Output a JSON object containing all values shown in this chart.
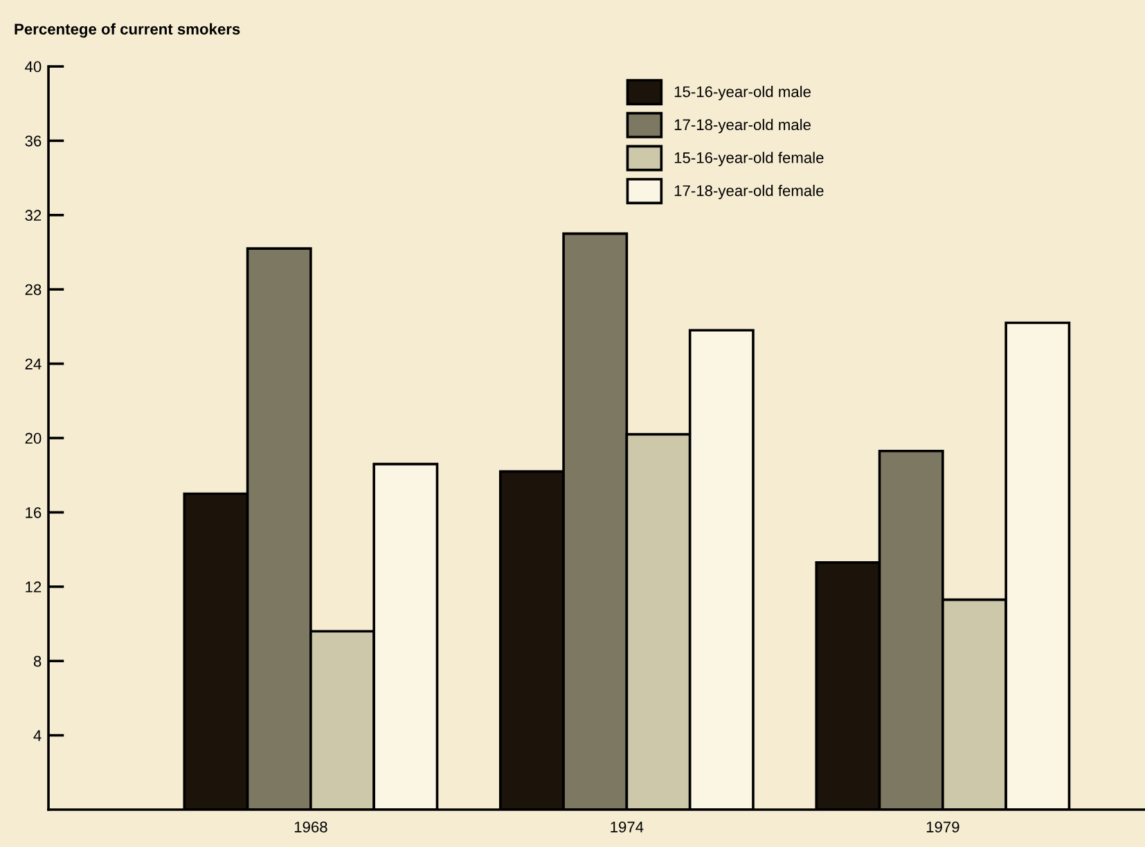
{
  "chart_data": {
    "type": "bar",
    "ylabel": "Percentege of current smokers",
    "categories": [
      "1968",
      "1974",
      "1979"
    ],
    "series": [
      {
        "name": "15-16-year-old male",
        "color": "#1c140a",
        "values": [
          17.0,
          18.2,
          13.3
        ]
      },
      {
        "name": "17-18-year-old male",
        "color": "#7d7862",
        "values": [
          30.2,
          31.0,
          19.3
        ]
      },
      {
        "name": "15-16-year-old female",
        "color": "#cdc8aa",
        "values": [
          9.6,
          20.2,
          11.3
        ]
      },
      {
        "name": "17-18-year-old female",
        "color": "#fbf5e4",
        "values": [
          18.6,
          25.8,
          26.2
        ]
      }
    ],
    "ylim": [
      0,
      40
    ],
    "yticks": [
      4,
      8,
      12,
      16,
      20,
      24,
      28,
      32,
      36,
      40
    ],
    "legend": "top right",
    "grid": false
  }
}
